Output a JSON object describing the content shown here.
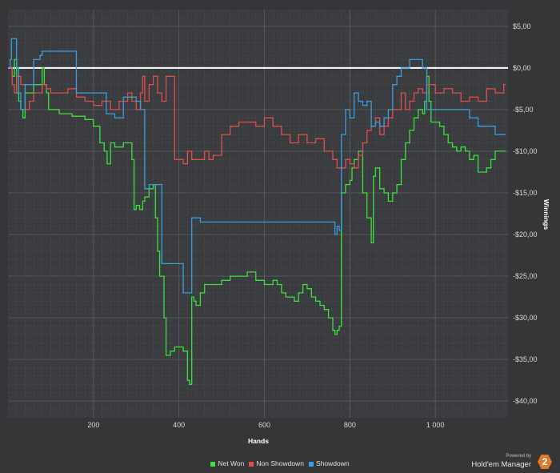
{
  "chart_data": {
    "type": "line",
    "xlabel": "Hands",
    "ylabel": "Winnings",
    "xlim": [
      0,
      1170
    ],
    "ylim": [
      -42,
      7
    ],
    "x_ticks": [
      200,
      400,
      600,
      800,
      1000
    ],
    "x_tick_labels": [
      "200",
      "400",
      "600",
      "800",
      "1 000"
    ],
    "y_ticks": [
      5,
      0,
      -5,
      -10,
      -15,
      -20,
      -25,
      -30,
      -35,
      -40
    ],
    "y_tick_labels": [
      "$5,00",
      "$0,00",
      "-$5,00",
      "-$10,00",
      "-$15,00",
      "-$20,00",
      "-$25,00",
      "-$30,00",
      "-$35,00",
      "-$40,00"
    ],
    "grid": true,
    "legend_position": "bottom",
    "zero_line": 0,
    "series": [
      {
        "name": "Net Won",
        "color": "#3ee03e",
        "x": [
          0,
          10,
          15,
          20,
          25,
          30,
          35,
          40,
          50,
          60,
          70,
          80,
          85,
          90,
          95,
          100,
          120,
          150,
          180,
          200,
          215,
          225,
          232,
          240,
          250,
          270,
          285,
          290,
          295,
          300,
          308,
          315,
          320,
          330,
          340,
          345,
          350,
          355,
          360,
          365,
          370,
          380,
          390,
          400,
          410,
          420,
          425,
          430,
          435,
          440,
          450,
          460,
          470,
          480,
          500,
          520,
          540,
          560,
          580,
          600,
          620,
          630,
          640,
          650,
          660,
          670,
          680,
          690,
          700,
          710,
          720,
          730,
          740,
          750,
          760,
          765,
          770,
          775,
          780,
          790,
          800,
          805,
          810,
          820,
          830,
          840,
          850,
          855,
          860,
          870,
          880,
          890,
          900,
          910,
          920,
          930,
          940,
          950,
          960,
          970,
          975,
          980,
          985,
          990,
          1000,
          1010,
          1020,
          1030,
          1040,
          1050,
          1060,
          1070,
          1080,
          1090,
          1100,
          1110,
          1120,
          1130,
          1140,
          1150,
          1160,
          1165
        ],
        "y": [
          0,
          -1,
          1,
          -3,
          -4,
          -5,
          -6,
          -3,
          -3,
          -2,
          -2,
          0,
          -2,
          -3,
          -5,
          -5,
          -5.5,
          -5.8,
          -6.2,
          -7,
          -9,
          -10,
          -11.5,
          -9,
          -9.5,
          -9,
          -9,
          -11,
          -17,
          -16.5,
          -17,
          -16,
          -15.5,
          -14.5,
          -14,
          -18,
          -22,
          -25,
          -25,
          -30,
          -34.5,
          -34,
          -33.5,
          -33.5,
          -34,
          -37.5,
          -38,
          -27.5,
          -28,
          -28.5,
          -27,
          -26,
          -26,
          -26,
          -25.5,
          -25,
          -25,
          -24.5,
          -25.5,
          -26,
          -25.5,
          -26,
          -27,
          -27.5,
          -27.5,
          -28,
          -27,
          -26,
          -26.5,
          -27.5,
          -28,
          -28.5,
          -29,
          -30,
          -31.5,
          -32,
          -31.5,
          -31,
          -15,
          -14,
          -13.5,
          -12,
          -11,
          -10,
          -15,
          -18,
          -21,
          -13,
          -12,
          -14.5,
          -15,
          -16,
          -15,
          -14,
          -11,
          -9,
          -7.5,
          -6,
          -5,
          -5.5,
          -4,
          -1,
          -4,
          -6.5,
          -6.5,
          -7,
          -8,
          -9,
          -9.5,
          -10,
          -9.5,
          -10,
          -11,
          -10.5,
          -12.5,
          -12.5,
          -12,
          -11,
          -10,
          -10,
          -10,
          -10
        ]
      },
      {
        "name": "Non Showdown",
        "color": "#e0504a",
        "x": [
          0,
          10,
          15,
          20,
          30,
          40,
          50,
          60,
          70,
          80,
          90,
          100,
          120,
          140,
          160,
          180,
          200,
          220,
          240,
          260,
          280,
          290,
          300,
          310,
          315,
          320,
          330,
          340,
          350,
          360,
          370,
          380,
          390,
          400,
          410,
          420,
          430,
          440,
          450,
          460,
          470,
          480,
          500,
          520,
          540,
          560,
          580,
          600,
          620,
          640,
          660,
          680,
          700,
          720,
          740,
          760,
          770,
          780,
          790,
          800,
          810,
          820,
          830,
          840,
          850,
          860,
          870,
          880,
          890,
          900,
          910,
          920,
          930,
          940,
          950,
          960,
          970,
          980,
          990,
          1000,
          1020,
          1040,
          1060,
          1080,
          1100,
          1120,
          1140,
          1160,
          1165
        ],
        "y": [
          0,
          -2,
          -3,
          -1,
          -2,
          -5,
          -4,
          -3,
          -3,
          -2,
          -2.5,
          -3,
          -3,
          -2.5,
          -3.5,
          -4,
          -4.5,
          -4,
          -5,
          -4,
          -3,
          -4,
          -5,
          -3,
          -1,
          -4,
          -2,
          -1,
          -3,
          -4,
          -1,
          -1,
          -11,
          -11,
          -11.5,
          -10,
          -11,
          -11,
          -11,
          -10,
          -11,
          -10.5,
          -8,
          -7,
          -6.5,
          -6.5,
          -7,
          -6,
          -7,
          -8,
          -9,
          -8,
          -9,
          -8.5,
          -10,
          -11,
          -12,
          -12,
          -11,
          -11.5,
          -12,
          -10.5,
          -9,
          -7.5,
          -7,
          -6,
          -8,
          -7,
          -6,
          -5,
          -5,
          -3,
          -5,
          -4,
          -3,
          -2.5,
          -3,
          -2,
          -2,
          -3,
          -2.5,
          -3,
          -4,
          -3.5,
          -4,
          -2.5,
          -3,
          -2,
          -2
        ]
      },
      {
        "name": "Showdown",
        "color": "#3a9ee0",
        "x": [
          0,
          5,
          8,
          15,
          20,
          25,
          30,
          40,
          60,
          75,
          80,
          100,
          160,
          210,
          230,
          250,
          270,
          290,
          300,
          310,
          320,
          330,
          340,
          350,
          360,
          370,
          380,
          390,
          400,
          405,
          410,
          420,
          430,
          440,
          450,
          460,
          470,
          480,
          500,
          550,
          600,
          650,
          700,
          750,
          760,
          765,
          770,
          775,
          780,
          790,
          800,
          810,
          820,
          830,
          840,
          850,
          860,
          870,
          880,
          890,
          900,
          910,
          920,
          930,
          940,
          950,
          960,
          970,
          980,
          990,
          1000,
          1020,
          1040,
          1060,
          1080,
          1100,
          1120,
          1140,
          1160,
          1165
        ],
        "y": [
          0,
          1,
          3.5,
          3.5,
          0,
          -3,
          -5,
          -2,
          1,
          1.5,
          2,
          2,
          -3,
          -3,
          -5.5,
          -6,
          -3.5,
          -3.5,
          -4,
          -5,
          -14.5,
          -14,
          -14,
          -14,
          -23.5,
          -23.5,
          -23.5,
          -23.5,
          -23.5,
          -23.5,
          -27,
          -27,
          -18,
          -18,
          -18.5,
          -18.5,
          -18.5,
          -18.5,
          -18.5,
          -18.5,
          -18.5,
          -18.5,
          -18.5,
          -18.5,
          -18.5,
          -20,
          -19,
          -19.5,
          -8,
          -5,
          -6,
          -3,
          -4,
          -4.5,
          -4,
          -7,
          -6.5,
          -7,
          -6,
          -5,
          -2,
          -1,
          0,
          0,
          1,
          1,
          1,
          0,
          -5,
          -5,
          -5,
          -5,
          -5,
          -5,
          -6,
          -7,
          -7,
          -8,
          -8,
          -8
        ]
      }
    ],
    "brand": {
      "small": "Powered by",
      "big": "Hold'em Manager",
      "badge": "2"
    }
  }
}
